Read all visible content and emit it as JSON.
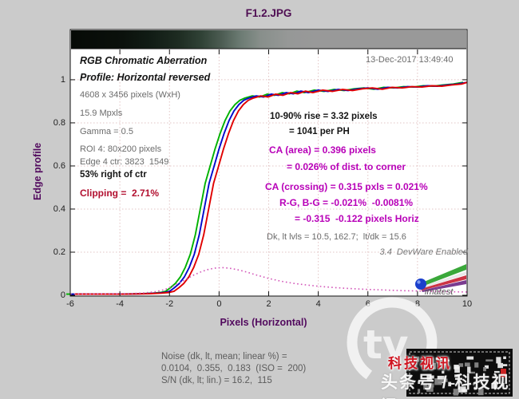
{
  "title": "F1.2.JPG",
  "timestamp": "13-Dec-2017 13:49:40",
  "annotations": {
    "heading1": "RGB Chromatic Aberration",
    "heading2": "Profile: Horizontal reversed",
    "dimensions": "4608 x 3456 pixels (WxH)",
    "megapixels": "15.9 Mpxls",
    "gamma": "Gamma = 0.5",
    "roi": "ROI 4: 80x200 pixels",
    "edge_center": "Edge 4 ctr: 3823  1549",
    "position": "53% right of ctr",
    "clipping": "Clipping =  2.71%",
    "rise_line1": "10-90% rise = 3.32 pixels",
    "rise_line2": "= 1041 per PH",
    "ca_area_line1": "CA (area) = 0.396 pixels",
    "ca_area_line2": "= 0.026% of dist. to corner",
    "ca_crossing": "CA (crossing) = 0.315 pxls = 0.021%",
    "rg_bg": "R-G, B-G = -0.021%  -0.0081%",
    "rg_bg_pixels": "= -0.315  -0.122 pixels Horiz",
    "dk_lt_levels": "Dk, lt lvls = 10.5, 162.7;  lt/dk = 15.6",
    "version": "3.4  DevWare Enabled"
  },
  "footer": {
    "noise_line1": "Noise (dk, lt, mean; linear %) =",
    "noise_line2": "0.0104,  0.355,  0.183  (ISO =  200)",
    "noise_line3": "S/N (dk, lt; lin.) = 16.2,  115"
  },
  "logo": {
    "label": "imatest"
  },
  "watermark": {
    "red_text": "科技视讯",
    "bottom_text": "头条号 / 科技视讯",
    "tv_text": "tv"
  },
  "chart_data": {
    "type": "line",
    "title": "F1.2.JPG",
    "xlabel": "Pixels (Horizontal)",
    "ylabel": "Edge profile",
    "xlim": [
      -6,
      10
    ],
    "ylim": [
      0,
      1.233
    ],
    "xticks": [
      -6,
      -4,
      -2,
      0,
      2,
      4,
      6,
      8,
      10
    ],
    "yticks": [
      0,
      0.2,
      0.4,
      0.6,
      0.8,
      1
    ],
    "grid": "dotted",
    "grid_color": "#e2c4c4",
    "legend_position": "none",
    "gradient_bar": {
      "position": "top",
      "from": "#060a06",
      "to": "#999999"
    },
    "edge_x": [
      -6,
      -5,
      -4,
      -3,
      -2.5,
      -2.2,
      -2,
      -1.8,
      -1.6,
      -1.4,
      -1.2,
      -1,
      -0.8,
      -0.6,
      -0.4,
      -0.2,
      0,
      0.2,
      0.4,
      0.6,
      0.8,
      1,
      1.2,
      1.5,
      1.8,
      2.1,
      2.4,
      2.7,
      3,
      3.3,
      3.6,
      4,
      4.4,
      4.8,
      5.2,
      5.6,
      6,
      6.4,
      6.8,
      7.2,
      7.6,
      8,
      8.4,
      8.8,
      9.2,
      9.6,
      10
    ],
    "edge_y": [
      0.005,
      0.005,
      0.005,
      0.007,
      0.01,
      0.013,
      0.018,
      0.035,
      0.055,
      0.085,
      0.13,
      0.19,
      0.28,
      0.4,
      0.52,
      0.6,
      0.68,
      0.75,
      0.81,
      0.855,
      0.885,
      0.905,
      0.915,
      0.925,
      0.92,
      0.933,
      0.928,
      0.94,
      0.935,
      0.947,
      0.94,
      0.952,
      0.946,
      0.955,
      0.95,
      0.958,
      0.962,
      0.956,
      0.965,
      0.962,
      0.968,
      0.966,
      0.972,
      0.97,
      0.976,
      0.98,
      0.988
    ],
    "series": [
      {
        "name": "green-edge-profile",
        "color": "#00b200",
        "style": "solid",
        "x_offset": -0.16,
        "uses": "edge"
      },
      {
        "name": "blue-edge-profile",
        "color": "#0008cc",
        "style": "solid",
        "x_offset": 0,
        "uses": "edge"
      },
      {
        "name": "red-edge-profile",
        "color": "#e00000",
        "style": "solid",
        "x_offset": 0.18,
        "uses": "edge"
      },
      {
        "name": "ca-difference",
        "color": "#d255b8",
        "style": "dotted",
        "x_offset": 0,
        "uses": "ca"
      }
    ],
    "ca_x": [
      -6,
      -5,
      -4,
      -3.5,
      -3,
      -2.6,
      -2.2,
      -1.8,
      -1.4,
      -1,
      -0.7,
      -0.4,
      -0.1,
      0.2,
      0.5,
      0.8,
      1.1,
      1.5,
      2,
      2.5,
      3,
      3.5,
      4,
      4.5,
      5,
      5.5,
      6,
      6.5,
      7,
      7.5,
      8,
      8.5,
      9,
      9.5,
      10
    ],
    "ca_y": [
      0.006,
      0.006,
      0.007,
      0.008,
      0.011,
      0.016,
      0.026,
      0.045,
      0.07,
      0.095,
      0.11,
      0.121,
      0.127,
      0.128,
      0.124,
      0.117,
      0.108,
      0.094,
      0.078,
      0.065,
      0.055,
      0.048,
      0.042,
      0.037,
      0.033,
      0.03,
      0.027,
      0.025,
      0.023,
      0.021,
      0.02,
      0.018,
      0.017,
      0.016,
      0.015
    ]
  }
}
